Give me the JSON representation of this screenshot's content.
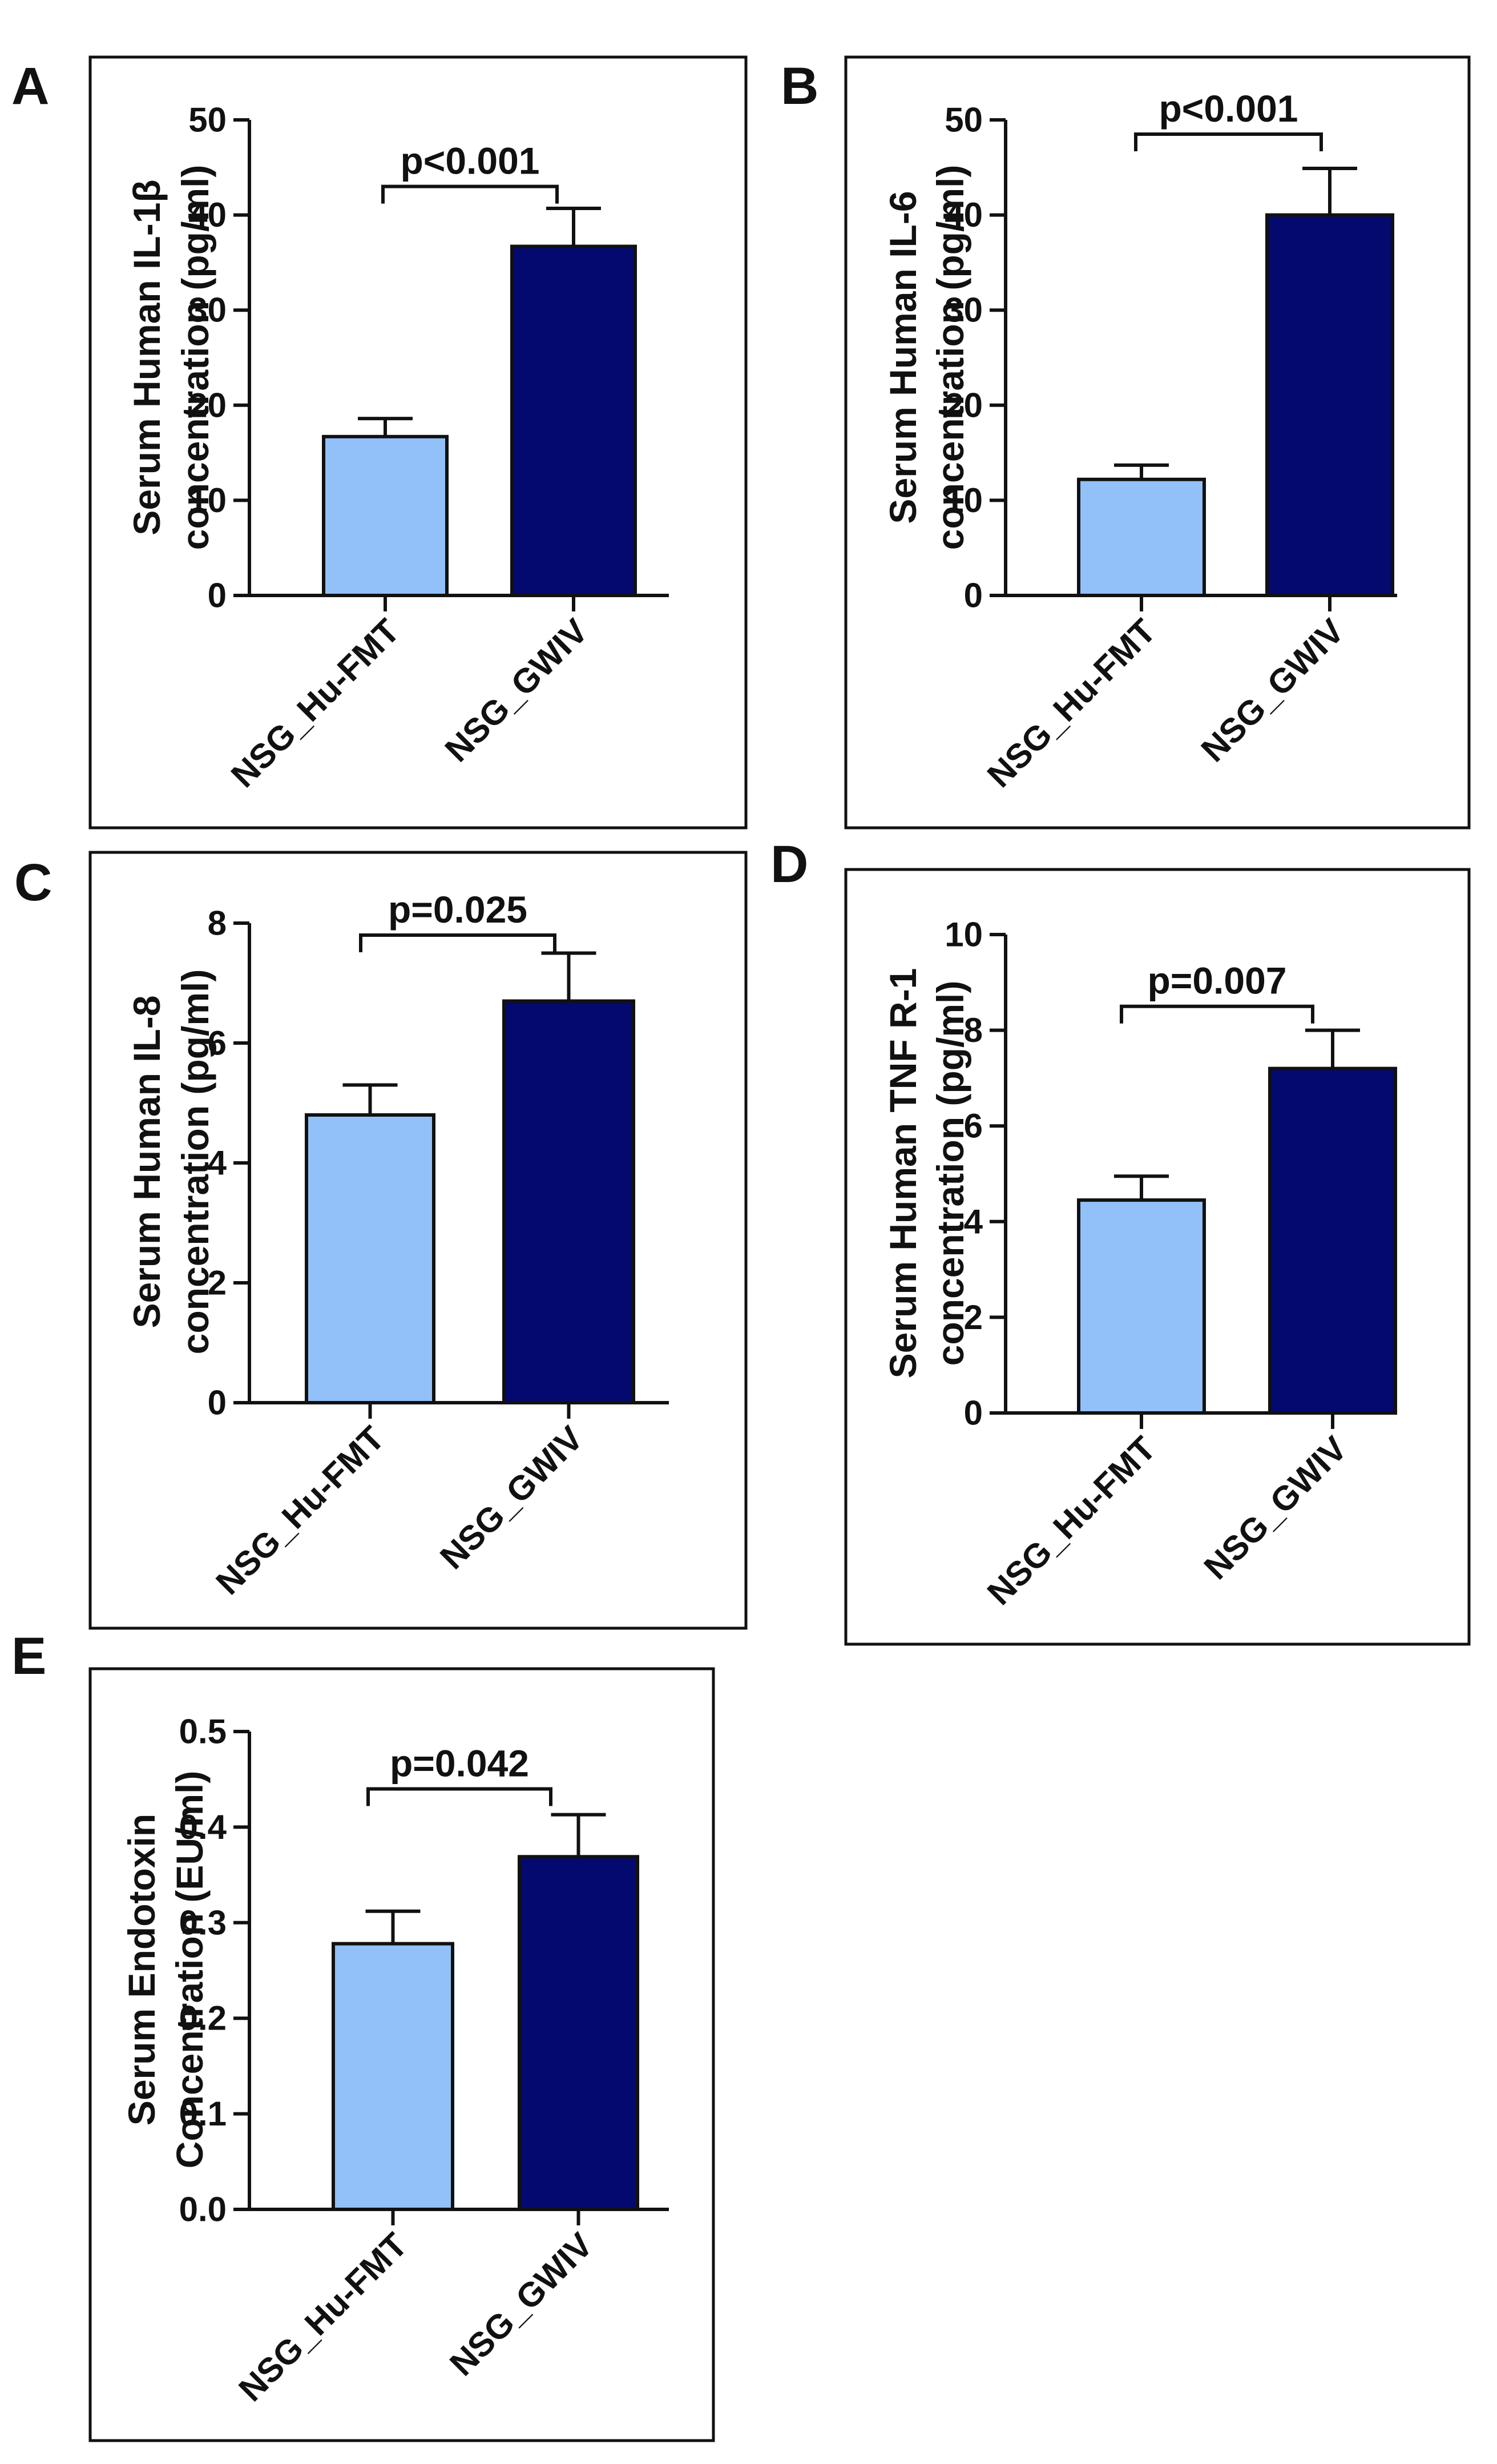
{
  "colors": {
    "group1": "#92c0f8",
    "group2": "#03096e",
    "ink": "#111111",
    "background": "#ffffff"
  },
  "chart_data": [
    {
      "panel": "A",
      "type": "bar",
      "categories": [
        "NSG_Hu-FMT",
        "NSG_GWIV"
      ],
      "values": [
        16.7,
        36.7
      ],
      "errors": [
        1.9,
        4.0
      ],
      "ylabel": [
        "Serum Human IL-1β",
        "concentration (pg/ml)"
      ],
      "ylim": [
        0,
        50
      ],
      "yticks": [
        0,
        10,
        20,
        30,
        40,
        50
      ],
      "tick_labels": [
        "0",
        "10",
        "20",
        "30",
        "40",
        "50"
      ],
      "significance": "p<0.001",
      "bracket_y": 43
    },
    {
      "panel": "B",
      "type": "bar",
      "categories": [
        "NSG_Hu-FMT",
        "NSG_GWIV"
      ],
      "values": [
        12.2,
        40.0
      ],
      "errors": [
        1.5,
        4.9
      ],
      "ylabel": [
        "Serum Human IL-6",
        "concentration (pg/ml)"
      ],
      "ylim": [
        0,
        50
      ],
      "yticks": [
        0,
        10,
        20,
        30,
        40,
        50
      ],
      "tick_labels": [
        "0",
        "10",
        "20",
        "30",
        "40",
        "50"
      ],
      "significance": "p<0.001",
      "bracket_y": 48.5
    },
    {
      "panel": "C",
      "type": "bar",
      "categories": [
        "NSG_Hu-FMT",
        "NSG_GWIV"
      ],
      "values": [
        4.8,
        6.7
      ],
      "errors": [
        0.5,
        0.8
      ],
      "ylabel": [
        "Serum Human IL-8",
        "concentration (pg/ml)"
      ],
      "ylim": [
        0,
        8
      ],
      "yticks": [
        0,
        2,
        4,
        6,
        8
      ],
      "tick_labels": [
        "0",
        "2",
        "4",
        "6",
        "8"
      ],
      "significance": "p=0.025",
      "bracket_y": 7.8
    },
    {
      "panel": "D",
      "type": "bar",
      "categories": [
        "NSG_Hu-FMT",
        "NSG_GWIV"
      ],
      "values": [
        4.45,
        7.2
      ],
      "errors": [
        0.5,
        0.8
      ],
      "ylabel": [
        "Serum Human TNF R-1",
        "concentration (pg/ml)"
      ],
      "ylim": [
        0,
        10
      ],
      "yticks": [
        0,
        2,
        4,
        6,
        8,
        10
      ],
      "tick_labels": [
        "0",
        "2",
        "4",
        "6",
        "8",
        "10"
      ],
      "significance": "p=0.007",
      "bracket_y": 8.5
    },
    {
      "panel": "E",
      "type": "bar",
      "categories": [
        "NSG_Hu-FMT",
        "NSG_GWIV"
      ],
      "values": [
        0.278,
        0.369
      ],
      "errors": [
        0.034,
        0.044
      ],
      "ylabel": [
        "Serum Endotoxin",
        "Concentration (EU/ml)"
      ],
      "ylim": [
        0,
        0.5
      ],
      "yticks": [
        0,
        0.1,
        0.2,
        0.3,
        0.4,
        0.5
      ],
      "tick_labels": [
        "0.0",
        "0.1",
        "0.2",
        "0.3",
        "0.4",
        "0.5"
      ],
      "significance": "p=0.042",
      "bracket_y": 0.44
    }
  ]
}
